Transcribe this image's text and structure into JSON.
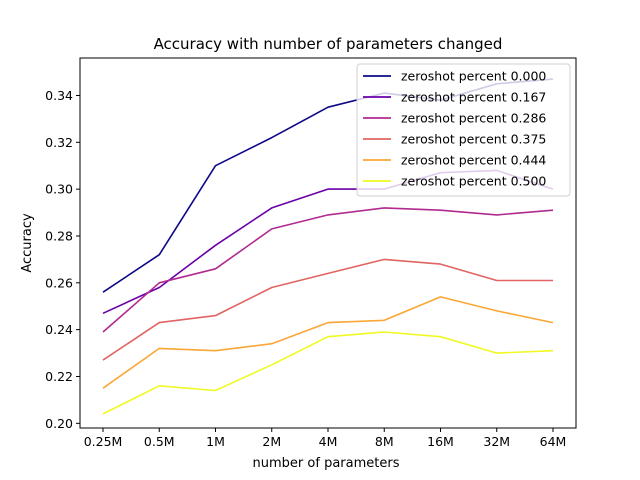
{
  "chart_data": {
    "type": "line",
    "title": "Accuracy with number of parameters changed",
    "xlabel": "number of parameters",
    "ylabel": "Accuracy",
    "categories": [
      "0.25M",
      "0.5M",
      "1M",
      "2M",
      "4M",
      "8M",
      "16M",
      "32M",
      "64M"
    ],
    "ylim": [
      0.198,
      0.356
    ],
    "yticks": [
      "0.20",
      "0.22",
      "0.24",
      "0.26",
      "0.28",
      "0.30",
      "0.32",
      "0.34"
    ],
    "grid": false,
    "legend_position": "top-right",
    "series": [
      {
        "name": "zeroshot percent 0.000",
        "color": "#0d0887",
        "values": [
          0.256,
          0.272,
          0.31,
          0.322,
          0.335,
          0.341,
          0.338,
          0.345,
          0.347
        ]
      },
      {
        "name": "zeroshot percent 0.167",
        "color": "#6a00a8",
        "values": [
          0.247,
          0.258,
          0.276,
          0.292,
          0.3,
          0.3,
          0.307,
          0.308,
          0.3
        ]
      },
      {
        "name": "zeroshot percent 0.286",
        "color": "#b12a90",
        "values": [
          0.239,
          0.26,
          0.266,
          0.283,
          0.289,
          0.292,
          0.291,
          0.289,
          0.291
        ]
      },
      {
        "name": "zeroshot percent 0.375",
        "color": "#e16462",
        "values": [
          0.227,
          0.243,
          0.246,
          0.258,
          0.264,
          0.27,
          0.268,
          0.261,
          0.261
        ]
      },
      {
        "name": "zeroshot percent 0.444",
        "color": "#fca636",
        "values": [
          0.215,
          0.232,
          0.231,
          0.234,
          0.243,
          0.244,
          0.254,
          0.248,
          0.243
        ]
      },
      {
        "name": "zeroshot percent 0.500",
        "color": "#f0f921",
        "values": [
          0.204,
          0.216,
          0.214,
          0.225,
          0.237,
          0.239,
          0.237,
          0.23,
          0.231
        ]
      }
    ]
  }
}
